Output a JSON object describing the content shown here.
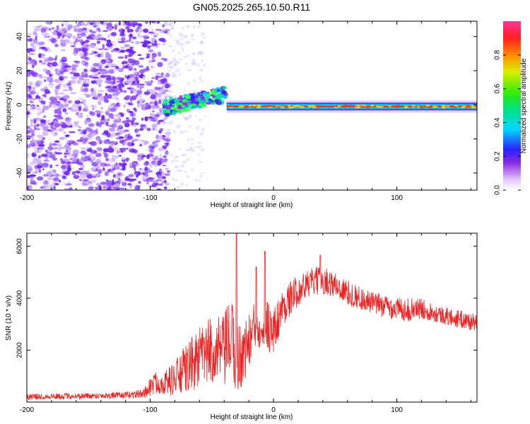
{
  "title": "GN05.2025.265.10.50.R11",
  "colors": {
    "snr_line": "#ee2222",
    "frame": "#000000"
  },
  "chart_data": [
    {
      "type": "heatmap",
      "name": "spectrogram",
      "xlabel": "Height of straight line (km)",
      "ylabel": "Frequency (Hz)",
      "xlim": [
        -200,
        165
      ],
      "ylim": [
        -50,
        49
      ],
      "xticks": [
        -200,
        -100,
        0,
        100
      ],
      "yticks": [
        -40,
        -20,
        0,
        20,
        40
      ],
      "colorbar": {
        "label": "Normalized spectral amplitude",
        "range": [
          0,
          1
        ],
        "ticks": [
          0.0,
          0.2,
          0.4,
          0.6,
          0.8
        ]
      },
      "features": [
        {
          "x_range": [
            -200,
            -85
          ],
          "freq_range": [
            -50,
            49
          ],
          "amplitude": "low (0.05-0.3)",
          "note": "scattered noise"
        },
        {
          "x_range": [
            -90,
            -38
          ],
          "freq_center_start": -2,
          "freq_center_end": 6,
          "amplitude": "0.4-0.6",
          "note": "rising track"
        },
        {
          "x_range": [
            -38,
            165
          ],
          "freq_center": -1,
          "amplitude": "0.6-1.0",
          "note": "steady carrier line"
        }
      ]
    },
    {
      "type": "line",
      "name": "snr",
      "xlabel": "Height of straight line (km)",
      "ylabel": "SNR (10 * v/v)",
      "xlim": [
        -200,
        165
      ],
      "ylim": [
        0,
        6500
      ],
      "xticks": [
        -200,
        -100,
        0,
        100
      ],
      "yticks": [
        2000,
        4000,
        6000
      ],
      "series": [
        {
          "name": "SNR",
          "x": [
            -200,
            -180,
            -160,
            -140,
            -120,
            -105,
            -100,
            -95,
            -90,
            -80,
            -70,
            -60,
            -50,
            -40,
            -35,
            -30,
            -25,
            -20,
            -15,
            -10,
            -5,
            0,
            5,
            10,
            20,
            30,
            40,
            50,
            60,
            70,
            80,
            90,
            100,
            110,
            120,
            130,
            140,
            150,
            160,
            165
          ],
          "mean": [
            200,
            220,
            230,
            250,
            260,
            330,
            600,
            750,
            700,
            900,
            1300,
            1700,
            2000,
            1900,
            2500,
            1700,
            1800,
            2300,
            2900,
            3100,
            3100,
            2600,
            3400,
            3800,
            4300,
            4600,
            4700,
            4500,
            4200,
            4000,
            3800,
            3700,
            3600,
            3550,
            3600,
            3450,
            3300,
            3200,
            3100,
            3050
          ],
          "spread": [
            120,
            120,
            120,
            120,
            130,
            180,
            400,
            450,
            400,
            700,
            1000,
            1200,
            1300,
            1400,
            1700,
            1500,
            1200,
            1100,
            1000,
            1000,
            1100,
            1000,
            800,
            700,
            600,
            550,
            550,
            500,
            500,
            450,
            450,
            450,
            450,
            450,
            400,
            350,
            350,
            350,
            350,
            300
          ],
          "peaks": [
            {
              "x": -30,
              "y": 6500
            },
            {
              "x": -7,
              "y": 5800
            },
            {
              "x": -14,
              "y": 5200
            },
            {
              "x": 38,
              "y": 5650
            }
          ]
        }
      ]
    }
  ]
}
